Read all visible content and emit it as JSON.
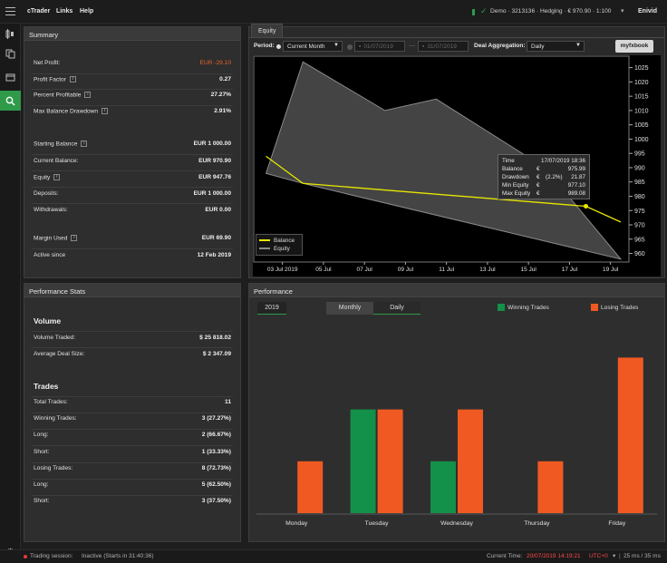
{
  "topbar": {
    "app_name": "cTrader",
    "menu_links": "Links",
    "menu_help": "Help",
    "account_info": "Demo · 3213136 · Hedging · € 970.90 · 1:100",
    "account_user": "Enivid",
    "accent": "#2e9a4a"
  },
  "summary": {
    "title": "Summary",
    "net_profit_label": "Net Profit:",
    "net_profit_value": "EUR -29.10",
    "profit_factor_label": "Profit Factor",
    "profit_factor_value": "0.27",
    "percent_profitable_label": "Percent Profitable",
    "percent_profitable_value": "27.27%",
    "max_balance_drawdown_label": "Max Balance Drawdown",
    "max_balance_drawdown_value": "2.91%",
    "starting_balance_label": "Starting Balance",
    "starting_balance_value": "EUR 1 000.00",
    "current_balance_label": "Current Balance:",
    "current_balance_value": "EUR 970.90",
    "equity_label": "Equity",
    "equity_value": "EUR 947.76",
    "deposits_label": "Deposits:",
    "deposits_value": "EUR 1 000.00",
    "withdrawals_label": "Withdrawals:",
    "withdrawals_value": "EUR 0.00",
    "margin_used_label": "Margin Used",
    "margin_used_value": "EUR 69.90",
    "active_since_label": "Active since",
    "active_since_value": "12 Feb 2019",
    "negative_color": "#e8642a"
  },
  "performance_stats": {
    "title": "Performance Stats",
    "volume_heading": "Volume",
    "volume_traded_label": "Volume Traded:",
    "volume_traded_value": "$ 25 818.02",
    "avg_deal_size_label": "Average Deal Size:",
    "avg_deal_size_value": "$ 2 347.09",
    "trades_heading": "Trades",
    "rows": [
      {
        "label": "Total Trades:",
        "value": "11"
      },
      {
        "label": "Winning Trades:",
        "value": "3 (27.27%)"
      },
      {
        "label": "Long:",
        "value": "2 (66.67%)"
      },
      {
        "label": "Short:",
        "value": "1 (33.33%)"
      },
      {
        "label": "Losing Trades:",
        "value": "8 (72.73%)"
      },
      {
        "label": "Long:",
        "value": "5 (62.50%)"
      },
      {
        "label": "Short:",
        "value": "3 (37.50%)"
      }
    ]
  },
  "equity": {
    "tab_label": "Equity",
    "period_label": "Period:",
    "period_value": "Current Month",
    "date_from": "01/07/2019",
    "date_to": "31/07/2019",
    "deal_aggregation_label": "Deal Aggregation:",
    "deal_aggregation_value": "Daily",
    "myfxbook_label": "myfxbook",
    "tooltip": {
      "time_label": "Time",
      "time_value": "17/07/2019 18:36",
      "balance_label": "Balance",
      "balance_currency": "€",
      "balance_value": "975.99",
      "drawdown_label": "Drawdown",
      "drawdown_currency": "€",
      "drawdown_pct": "(2.2%)",
      "drawdown_value": "21.87",
      "min_equity_label": "Min Equity",
      "min_equity_currency": "€",
      "min_equity_value": "977.10",
      "max_equity_label": "Max Equity",
      "max_equity_currency": "€",
      "max_equity_value": "989.08"
    },
    "legend_balance": "Balance",
    "legend_equity": "Equity",
    "balance_color": "#e6e600",
    "equity_color": "#8a8a8a"
  },
  "chart_data": [
    {
      "type": "area",
      "title": "Equity",
      "x_ticks": [
        "03 Jul 2019",
        "05 Jul",
        "07 Jul",
        "09 Jul",
        "11 Jul",
        "13 Jul",
        "15 Jul",
        "17 Jul",
        "19 Jul"
      ],
      "y_ticks": [
        960,
        965,
        970,
        975,
        980,
        985,
        990,
        995,
        1000,
        1005,
        1010,
        1015,
        1020,
        1025
      ],
      "ylim": [
        957,
        1029
      ],
      "series": [
        {
          "name": "Balance",
          "x": [
            2.2,
            4.0,
            17.8,
            19.5
          ],
          "y": [
            994,
            984.5,
            976.5,
            971
          ]
        },
        {
          "name": "Equity",
          "x": [
            2.2,
            4.0,
            8.0,
            10.5,
            15.8,
            19.5
          ],
          "y": [
            988,
            1027,
            1010,
            1014,
            990,
            958
          ]
        }
      ],
      "equity_band_lower": {
        "x": [
          2.2,
          4.0,
          19.5
        ],
        "y": [
          988,
          984.5,
          958
        ]
      },
      "highlight_point": {
        "x": 17.8,
        "y": 976.5
      },
      "legend": "bottom-left",
      "grid": false
    },
    {
      "type": "bar",
      "title": "Performance",
      "year_tab": "2019",
      "view_tabs": [
        "Monthly",
        "Daily"
      ],
      "categories": [
        "Monday",
        "Tuesday",
        "Wednesday",
        "Thursday",
        "Friday"
      ],
      "series": [
        {
          "name": "Winning Trades",
          "color": "#139049",
          "values": [
            0,
            2,
            1,
            0,
            0
          ]
        },
        {
          "name": "Losing Trades",
          "color": "#f05a22",
          "values": [
            1,
            2,
            2,
            1,
            3
          ]
        }
      ],
      "ylim": [
        0,
        3.2
      ],
      "legend": "top-right",
      "grid": false
    }
  ],
  "statusbar": {
    "session_label": "Trading session:",
    "session_value": "Inactive (Starts in 31:40:36)",
    "current_time_label": "Current Time:",
    "current_time_value": "20/07/2019 14:19:21",
    "timezone": "UTC+0",
    "latency": "25 ms / 35 ms",
    "time_color": "#ff4a4a"
  }
}
